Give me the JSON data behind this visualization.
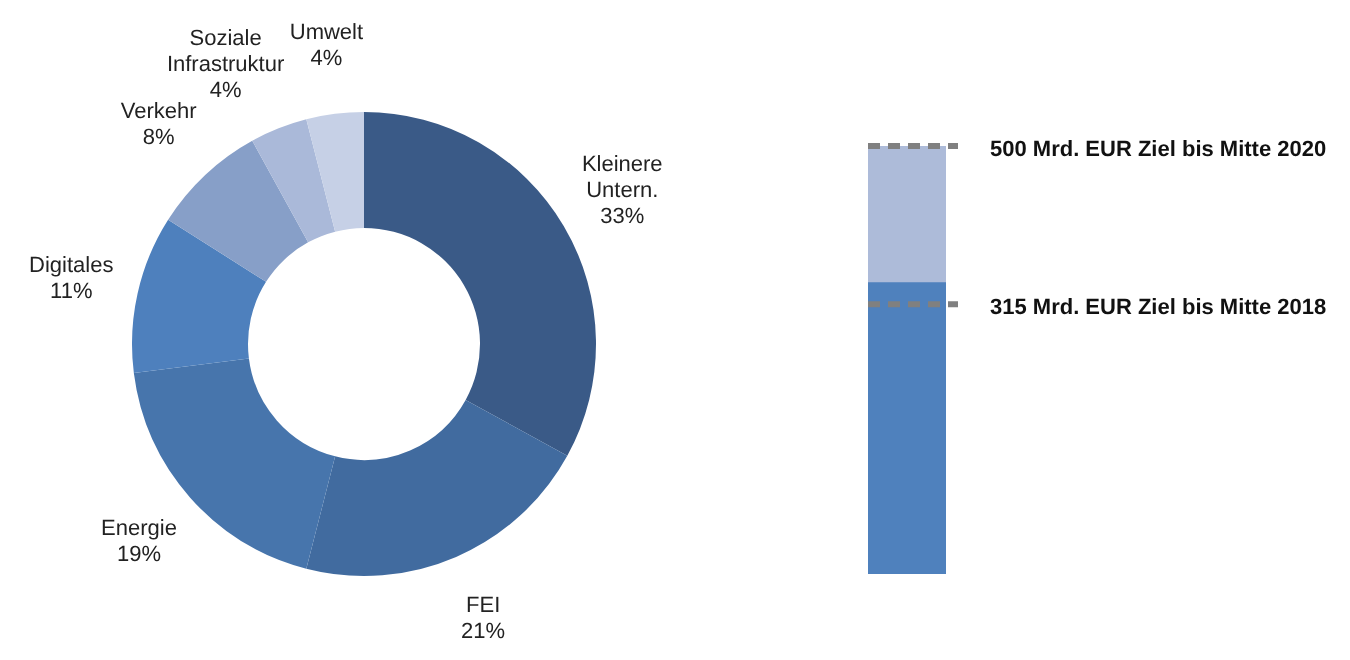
{
  "chart_data": [
    {
      "type": "donut",
      "categories": [
        "Kleinere Untern.",
        "FEI",
        "Energie",
        "Digitales",
        "Verkehr",
        "Soziale Infrastruktur",
        "Umwelt"
      ],
      "values": [
        33,
        21,
        19,
        11,
        8,
        4,
        4
      ],
      "value_labels": [
        "33%",
        "21%",
        "19%",
        "11%",
        "8%",
        "4%",
        "4%"
      ],
      "colors": [
        "#3a5a87",
        "#416b9f",
        "#4775ac",
        "#4e80bd",
        "#879fc8",
        "#aab9d9",
        "#c6d0e6"
      ],
      "legend": false
    },
    {
      "type": "bar",
      "stacked": true,
      "categories": [
        null
      ],
      "series": [
        {
          "color": "#4f81bd",
          "values": [
            340
          ]
        },
        {
          "color": "#adbbd9",
          "values": [
            160
          ]
        }
      ],
      "ylim": [
        0,
        500
      ],
      "tick_labels": false,
      "legend": false,
      "ref_lines": [
        {
          "axis": "y",
          "value": 500,
          "label": "500 Mrd. EUR Ziel bis Mitte 2020",
          "color": "#808080",
          "line_style": "dashed"
        },
        {
          "axis": "y",
          "value": 315,
          "label": "315 Mrd. EUR Ziel bis Mitte 2018",
          "color": "#808080",
          "line_style": "dashed"
        }
      ]
    }
  ]
}
